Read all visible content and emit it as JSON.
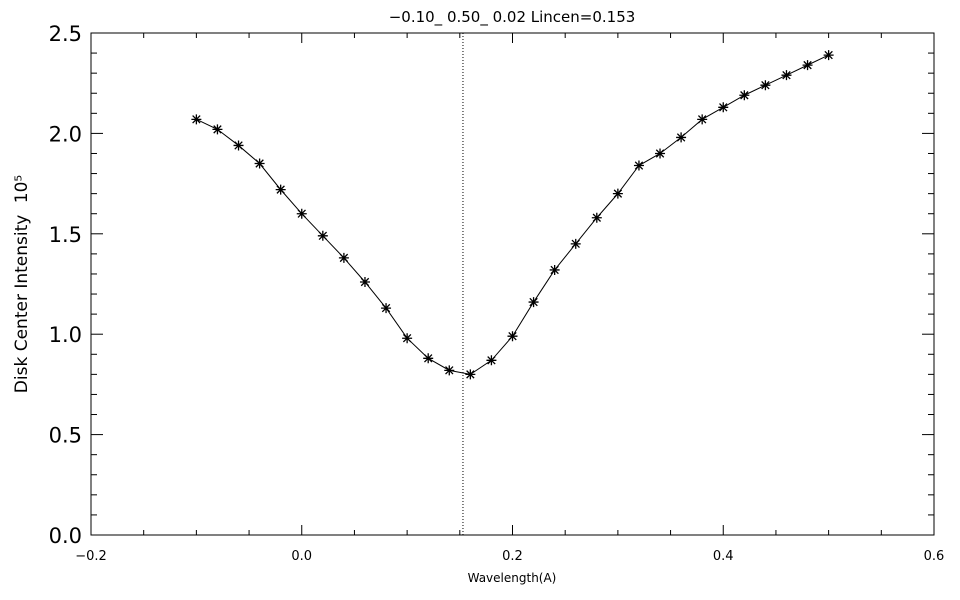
{
  "chart_data": {
    "type": "line",
    "title": "−0.10_  0.50_  0.02   Lincen=0.153",
    "xlabel": "Wavelength(A)",
    "ylabel": "Disk Center Intensity",
    "ylabel_sup": "10⁵",
    "xlim": [
      -0.2,
      0.6
    ],
    "ylim": [
      0.0,
      2.5
    ],
    "x_ticks": [
      -0.2,
      0.0,
      0.2,
      0.4,
      0.6
    ],
    "x_tick_labels": [
      "−0.2",
      "0.0",
      "0.2",
      "0.4",
      "0.6"
    ],
    "y_ticks": [
      0.0,
      0.5,
      1.0,
      1.5,
      2.0,
      2.5
    ],
    "y_tick_labels": [
      "0.0",
      "0.5",
      "1.0",
      "1.5",
      "2.0",
      "2.5"
    ],
    "grid": false,
    "marker": "asterisk",
    "line_center": 0.153,
    "series": [
      {
        "x": [
          -0.1,
          -0.08,
          -0.06,
          -0.04,
          -0.02,
          0.0,
          0.02,
          0.04,
          0.06,
          0.08,
          0.1,
          0.12,
          0.14,
          0.16,
          0.18,
          0.2,
          0.22,
          0.24,
          0.26,
          0.28,
          0.3,
          0.32,
          0.34,
          0.36,
          0.38,
          0.4,
          0.42,
          0.44,
          0.46,
          0.48,
          0.5
        ],
        "y": [
          2.07,
          2.02,
          1.94,
          1.85,
          1.72,
          1.6,
          1.49,
          1.38,
          1.26,
          1.13,
          0.98,
          0.88,
          0.82,
          0.8,
          0.87,
          0.99,
          1.16,
          1.32,
          1.45,
          1.58,
          1.7,
          1.84,
          1.9,
          1.98,
          2.07,
          2.13,
          2.19,
          2.24,
          2.29,
          2.34,
          2.39
        ]
      }
    ]
  }
}
